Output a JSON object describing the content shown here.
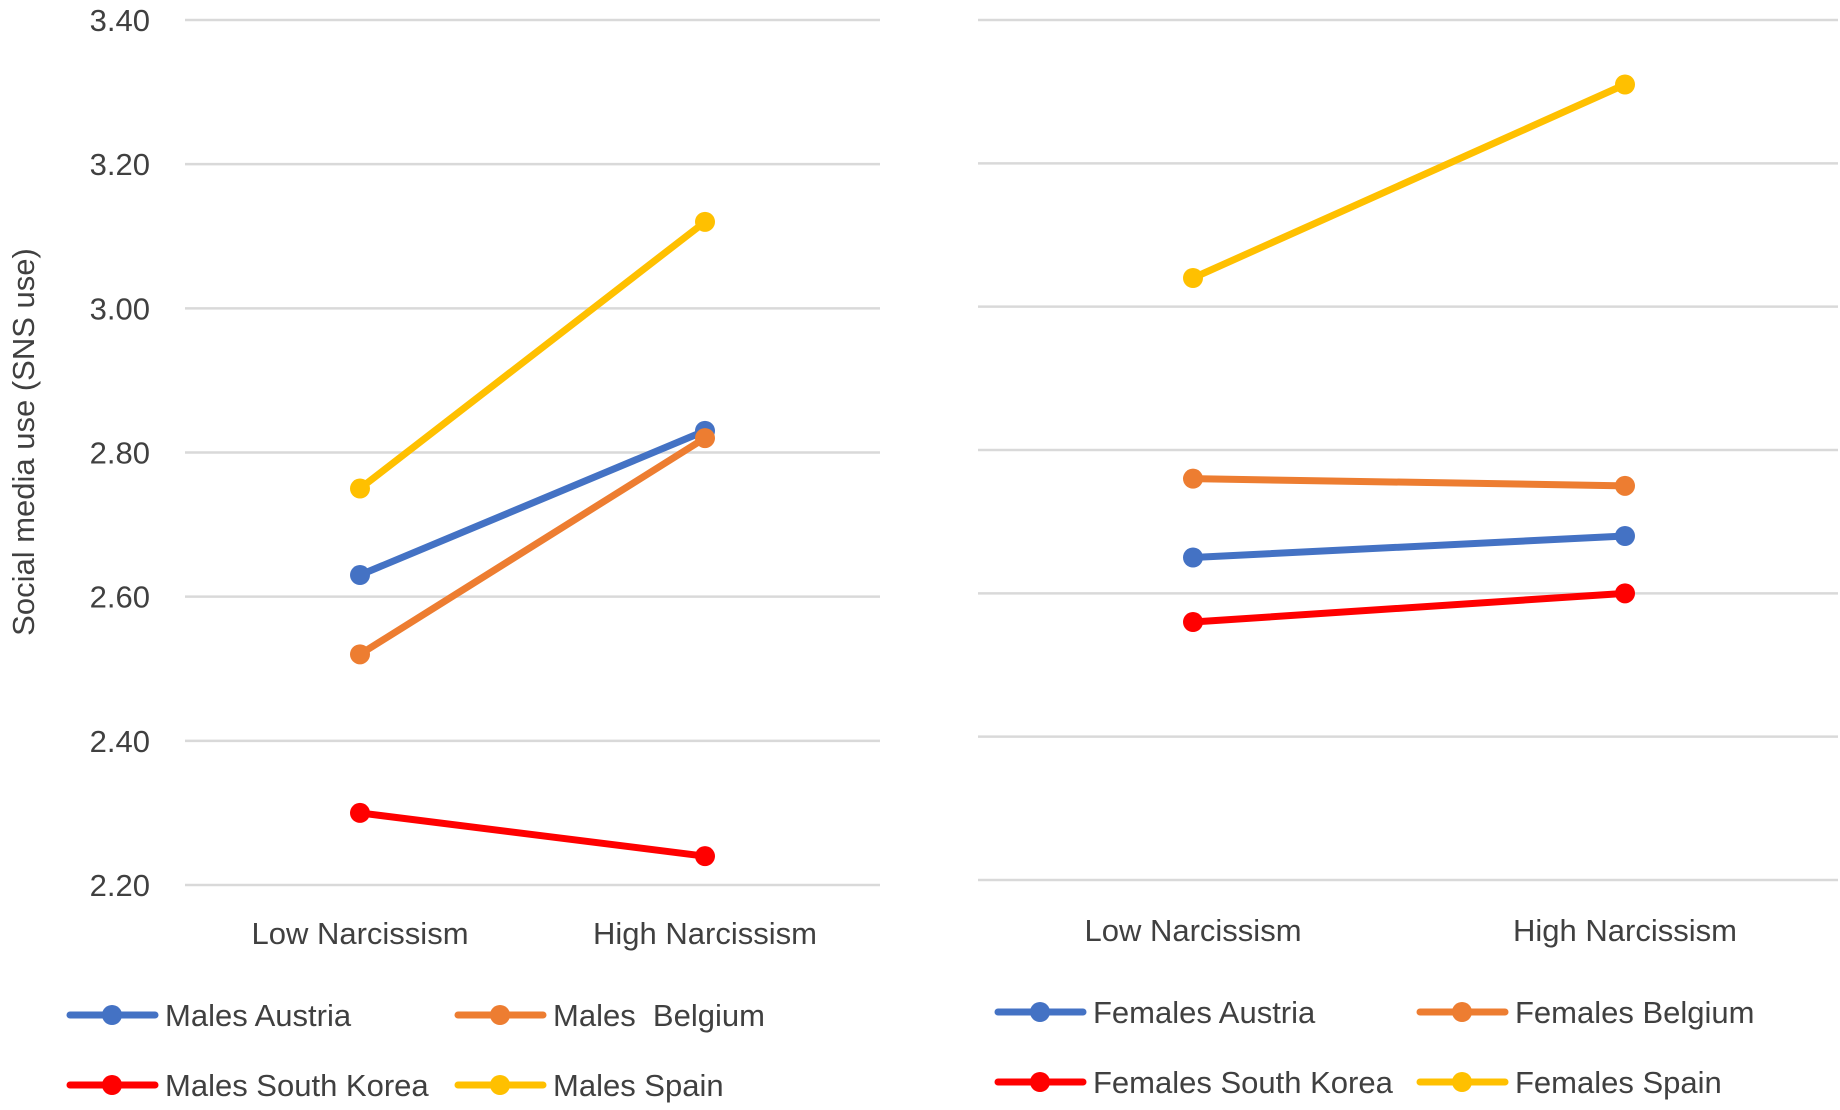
{
  "chart_data": [
    {
      "type": "line",
      "panel": "left",
      "categories": [
        "Low Narcissism",
        "High Narcissism"
      ],
      "ylabel": "Social media use (SNS use)",
      "ylim": [
        2.2,
        3.4
      ],
      "yticks": [
        "2.20",
        "2.40",
        "2.60",
        "2.80",
        "3.00",
        "3.20",
        "3.40"
      ],
      "grid": true,
      "legend_position": "bottom",
      "series": [
        {
          "name": "Males Austria",
          "color": "#4472C4",
          "values": [
            2.63,
            2.83
          ]
        },
        {
          "name": "Males  Belgium",
          "color": "#ED7D31",
          "values": [
            2.52,
            2.82
          ]
        },
        {
          "name": "Males South Korea",
          "color": "#FF0000",
          "values": [
            2.3,
            2.24
          ]
        },
        {
          "name": "Males Spain",
          "color": "#FFC000",
          "values": [
            2.75,
            3.12
          ]
        }
      ]
    },
    {
      "type": "line",
      "panel": "right",
      "categories": [
        "Low Narcissism",
        "High Narcissism"
      ],
      "ylim": [
        2.2,
        3.4
      ],
      "grid": true,
      "legend_position": "bottom",
      "series": [
        {
          "name": "Females Austria",
          "color": "#4472C4",
          "values": [
            2.65,
            2.68
          ]
        },
        {
          "name": "Females Belgium",
          "color": "#ED7D31",
          "values": [
            2.76,
            2.75
          ]
        },
        {
          "name": "Females South Korea",
          "color": "#FF0000",
          "values": [
            2.56,
            2.6
          ]
        },
        {
          "name": "Females Spain",
          "color": "#FFC000",
          "values": [
            3.04,
            3.31
          ]
        }
      ]
    }
  ],
  "colors": {
    "grid": "#D9D9D9",
    "text": "#404040"
  }
}
